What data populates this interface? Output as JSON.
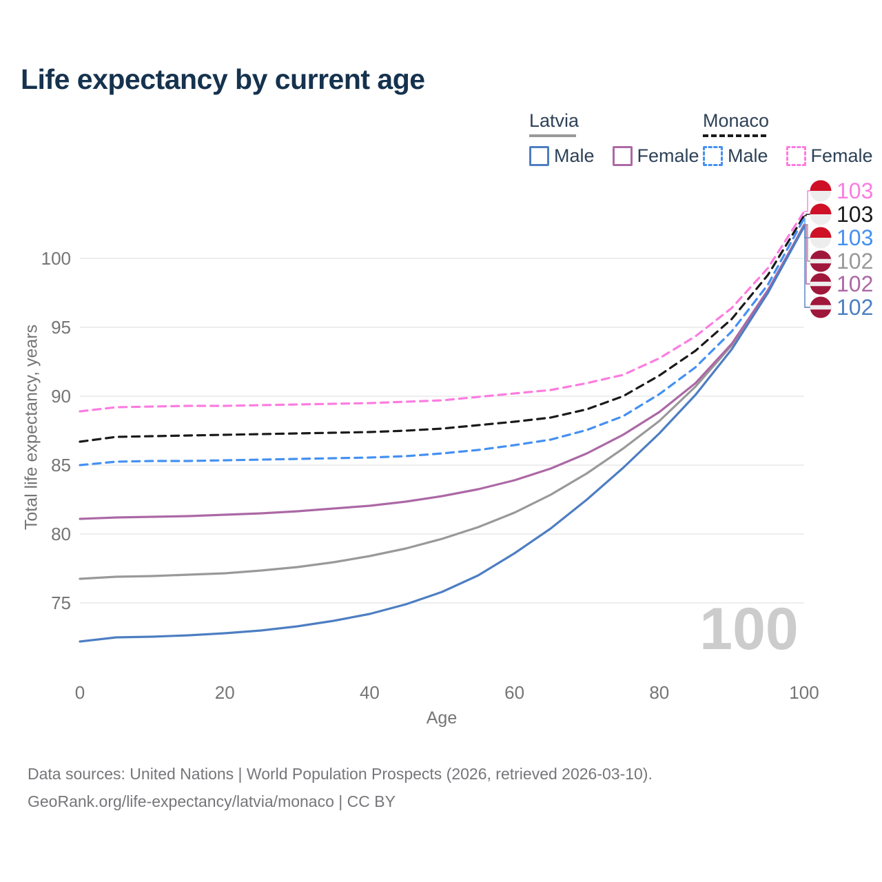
{
  "title": "Life expectancy by current age",
  "watermark": "100",
  "colors": {
    "title": "#15324e",
    "legend_text": "#2e4156",
    "axis_text": "#757575",
    "grid": "#e8e8e8",
    "watermark": "#cccccc",
    "footer": "#76767a",
    "flag_monaco_red": "#ce1126",
    "flag_latvia_red": "#a0173c",
    "flag_white": "#ededed"
  },
  "legend": {
    "groups": [
      {
        "name": "Latvia",
        "style": "solid",
        "color": "#999999",
        "underline_width": 68,
        "items": [
          {
            "label": "Male",
            "color": "#4d7ec2",
            "dashed": false
          },
          {
            "label": "Female",
            "color": "#ac68a5",
            "dashed": false
          }
        ]
      },
      {
        "name": "Monaco",
        "style": "dashed",
        "color": "#1a1a1a",
        "underline_width": 92,
        "items": [
          {
            "label": "Male",
            "color": "#4490f2",
            "dashed": true
          },
          {
            "label": "Female",
            "color": "#fc7ce0",
            "dashed": true
          }
        ]
      }
    ]
  },
  "chart_data": {
    "type": "line",
    "title": "Life expectancy by current age",
    "x_label": "Age",
    "y_label": "Total life expectancy, years",
    "xlim": [
      0,
      100
    ],
    "ylim": [
      71.5,
      105
    ],
    "x_ticks": [
      0,
      20,
      40,
      60,
      80,
      100
    ],
    "y_ticks": [
      75,
      80,
      85,
      90,
      95,
      100
    ],
    "grid": "horizontal",
    "legend_position": "top-right",
    "x": [
      0,
      5,
      10,
      15,
      20,
      25,
      30,
      35,
      40,
      45,
      50,
      55,
      60,
      65,
      70,
      75,
      80,
      85,
      90,
      95,
      100
    ],
    "series": [
      {
        "key": "monaco-female",
        "name": "Monaco Female",
        "country": "Monaco",
        "sex": "Female",
        "color": "#fc7ce0",
        "dashed": true,
        "flag": "monaco",
        "end_label": "103",
        "values": [
          88.9,
          89.2,
          89.25,
          89.3,
          89.3,
          89.35,
          89.4,
          89.45,
          89.5,
          89.6,
          89.7,
          89.95,
          90.2,
          90.45,
          90.95,
          91.55,
          92.75,
          94.35,
          96.4,
          99.3,
          103.4
        ]
      },
      {
        "key": "monaco",
        "name": "Monaco",
        "country": "Monaco",
        "sex": "All",
        "color": "#1a1a1a",
        "dashed": true,
        "flag": "monaco",
        "end_label": "103",
        "values": [
          86.7,
          87.05,
          87.1,
          87.15,
          87.2,
          87.25,
          87.3,
          87.35,
          87.4,
          87.5,
          87.65,
          87.9,
          88.15,
          88.45,
          89.05,
          90.0,
          91.5,
          93.3,
          95.6,
          98.8,
          103.1
        ]
      },
      {
        "key": "monaco-male",
        "name": "Monaco Male",
        "country": "Monaco",
        "sex": "Male",
        "color": "#4490f2",
        "dashed": true,
        "flag": "monaco",
        "end_label": "103",
        "values": [
          85.0,
          85.25,
          85.3,
          85.3,
          85.35,
          85.4,
          85.45,
          85.5,
          85.55,
          85.65,
          85.85,
          86.1,
          86.45,
          86.85,
          87.55,
          88.55,
          90.15,
          92.1,
          94.7,
          98.1,
          102.9
        ]
      },
      {
        "key": "latvia",
        "name": "Latvia",
        "country": "Latvia",
        "sex": "All",
        "color": "#999999",
        "dashed": false,
        "flag": "latvia",
        "end_label": "102",
        "values": [
          76.75,
          76.9,
          76.95,
          77.05,
          77.15,
          77.35,
          77.6,
          77.95,
          78.4,
          78.95,
          79.65,
          80.5,
          81.55,
          82.85,
          84.4,
          86.2,
          88.2,
          90.7,
          93.7,
          97.5,
          102.45
        ]
      },
      {
        "key": "latvia-female",
        "name": "Latvia Female",
        "country": "Latvia",
        "sex": "Female",
        "color": "#ac68a5",
        "dashed": false,
        "flag": "latvia",
        "end_label": "102",
        "values": [
          81.1,
          81.2,
          81.25,
          81.3,
          81.4,
          81.5,
          81.65,
          81.85,
          82.05,
          82.35,
          82.75,
          83.25,
          83.9,
          84.75,
          85.85,
          87.2,
          88.85,
          90.95,
          93.8,
          97.7,
          102.4
        ]
      },
      {
        "key": "latvia-male",
        "name": "Latvia Male",
        "country": "Latvia",
        "sex": "Male",
        "color": "#4d7ec2",
        "dashed": false,
        "flag": "latvia",
        "end_label": "102",
        "values": [
          72.2,
          72.5,
          72.55,
          72.65,
          72.8,
          73.0,
          73.3,
          73.7,
          74.2,
          74.9,
          75.8,
          77.0,
          78.6,
          80.4,
          82.5,
          84.8,
          87.3,
          90.1,
          93.4,
          97.5,
          102.3
        ]
      }
    ]
  },
  "footer": {
    "line1": "Data sources: United Nations | World Population Prospects (2026, retrieved 2026-03-10).",
    "line2": "GeoRank.org/life-expectancy/latvia/monaco | CC BY"
  }
}
